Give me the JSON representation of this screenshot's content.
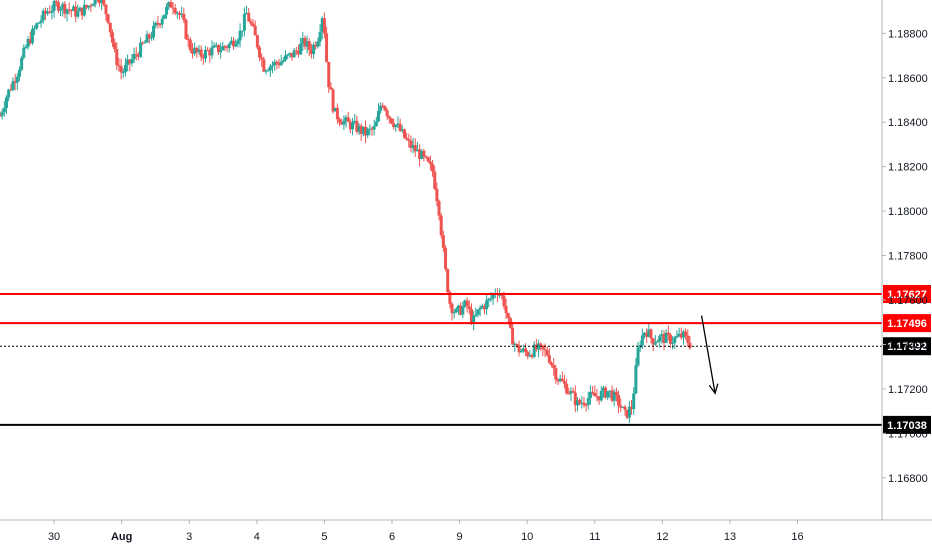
{
  "chart_data": {
    "type": "candlestick",
    "instrument_scale": "price",
    "colors": {
      "up": "#26a69a",
      "down": "#ef5350",
      "axis": "#131722",
      "axis_line": "#b2b5be",
      "resistance": "#ff0000",
      "support": "#000000",
      "current": "#000000"
    },
    "y_axis": {
      "range": [
        1.1661,
        1.1895
      ],
      "ticks": [
        "1.18800",
        "1.18600",
        "1.18400",
        "1.18200",
        "1.18000",
        "1.17800",
        "1.17600",
        "1.17400",
        "1.17200",
        "1.17000",
        "1.16800"
      ],
      "tick_values": [
        1.188,
        1.186,
        1.184,
        1.182,
        1.18,
        1.178,
        1.176,
        1.174,
        1.172,
        1.17,
        1.168
      ]
    },
    "x_axis": {
      "range": [
        -0.8,
        12.22
      ],
      "ticks": [
        "30",
        "Aug",
        "3",
        "4",
        "5",
        "6",
        "9",
        "10",
        "11",
        "12",
        "13",
        "16"
      ],
      "tick_positions": [
        0,
        1,
        2,
        3,
        4,
        5,
        6,
        7,
        8,
        9,
        10,
        11
      ]
    },
    "levels": [
      {
        "label": "1.17627",
        "value": 1.17627,
        "style": "solid",
        "color": "#ff0000"
      },
      {
        "label": "1.17496",
        "value": 1.17496,
        "style": "solid",
        "color": "#ff0000"
      },
      {
        "label": "1.17392",
        "value": 1.17392,
        "style": "dotted",
        "color": "#000000"
      },
      {
        "label": "1.17038",
        "value": 1.17038,
        "style": "solid",
        "color": "#000000"
      }
    ],
    "path_closes": [
      [
        -0.8,
        1.1843
      ],
      [
        -0.7,
        1.1852
      ],
      [
        -0.55,
        1.1862
      ],
      [
        -0.4,
        1.1875
      ],
      [
        -0.25,
        1.1884
      ],
      [
        -0.1,
        1.189
      ],
      [
        0.05,
        1.1893
      ],
      [
        0.2,
        1.1891
      ],
      [
        0.35,
        1.1889
      ],
      [
        0.5,
        1.1892
      ],
      [
        0.65,
        1.1898
      ],
      [
        0.8,
        1.1887
      ],
      [
        0.9,
        1.187
      ],
      [
        1.0,
        1.1862
      ],
      [
        1.15,
        1.1868
      ],
      [
        1.3,
        1.1874
      ],
      [
        1.45,
        1.188
      ],
      [
        1.6,
        1.1888
      ],
      [
        1.75,
        1.1894
      ],
      [
        1.9,
        1.1886
      ],
      [
        2.0,
        1.1874
      ],
      [
        2.15,
        1.187
      ],
      [
        2.3,
        1.1872
      ],
      [
        2.45,
        1.1873
      ],
      [
        2.6,
        1.1875
      ],
      [
        2.75,
        1.188
      ],
      [
        2.85,
        1.1889
      ],
      [
        3.0,
        1.1876
      ],
      [
        3.1,
        1.1865
      ],
      [
        3.25,
        1.1866
      ],
      [
        3.4,
        1.1868
      ],
      [
        3.55,
        1.1871
      ],
      [
        3.7,
        1.1876
      ],
      [
        3.8,
        1.1872
      ],
      [
        3.9,
        1.1878
      ],
      [
        3.98,
        1.189
      ],
      [
        4.05,
        1.186
      ],
      [
        4.15,
        1.1844
      ],
      [
        4.3,
        1.184
      ],
      [
        4.45,
        1.1838
      ],
      [
        4.6,
        1.1835
      ],
      [
        4.75,
        1.1837
      ],
      [
        4.85,
        1.185
      ],
      [
        4.95,
        1.1843
      ],
      [
        5.1,
        1.1837
      ],
      [
        5.25,
        1.183
      ],
      [
        5.4,
        1.1826
      ],
      [
        5.5,
        1.1822
      ],
      [
        5.6,
        1.1818
      ],
      [
        5.7,
        1.18
      ],
      [
        5.78,
        1.1775
      ],
      [
        5.86,
        1.1758
      ],
      [
        5.95,
        1.1754
      ],
      [
        6.1,
        1.1758
      ],
      [
        6.2,
        1.175
      ],
      [
        6.3,
        1.1756
      ],
      [
        6.45,
        1.176
      ],
      [
        6.55,
        1.1765
      ],
      [
        6.65,
        1.176
      ],
      [
        6.75,
        1.1745
      ],
      [
        6.85,
        1.1738
      ],
      [
        7.0,
        1.1736
      ],
      [
        7.15,
        1.1738
      ],
      [
        7.3,
        1.1736
      ],
      [
        7.45,
        1.1725
      ],
      [
        7.6,
        1.172
      ],
      [
        7.75,
        1.1713
      ],
      [
        7.9,
        1.1716
      ],
      [
        8.05,
        1.1717
      ],
      [
        8.2,
        1.1719
      ],
      [
        8.35,
        1.1714
      ],
      [
        8.45,
        1.1708
      ],
      [
        8.55,
        1.1712
      ],
      [
        8.65,
        1.174
      ],
      [
        8.75,
        1.1747
      ],
      [
        8.85,
        1.1742
      ],
      [
        9.0,
        1.1743
      ],
      [
        9.15,
        1.1742
      ],
      [
        9.3,
        1.1744
      ],
      [
        9.42,
        1.174
      ]
    ],
    "annotation": {
      "type": "arrow",
      "direction": "down",
      "from": [
        9.58,
        1.1753
      ],
      "to": [
        9.78,
        1.1718
      ]
    }
  }
}
